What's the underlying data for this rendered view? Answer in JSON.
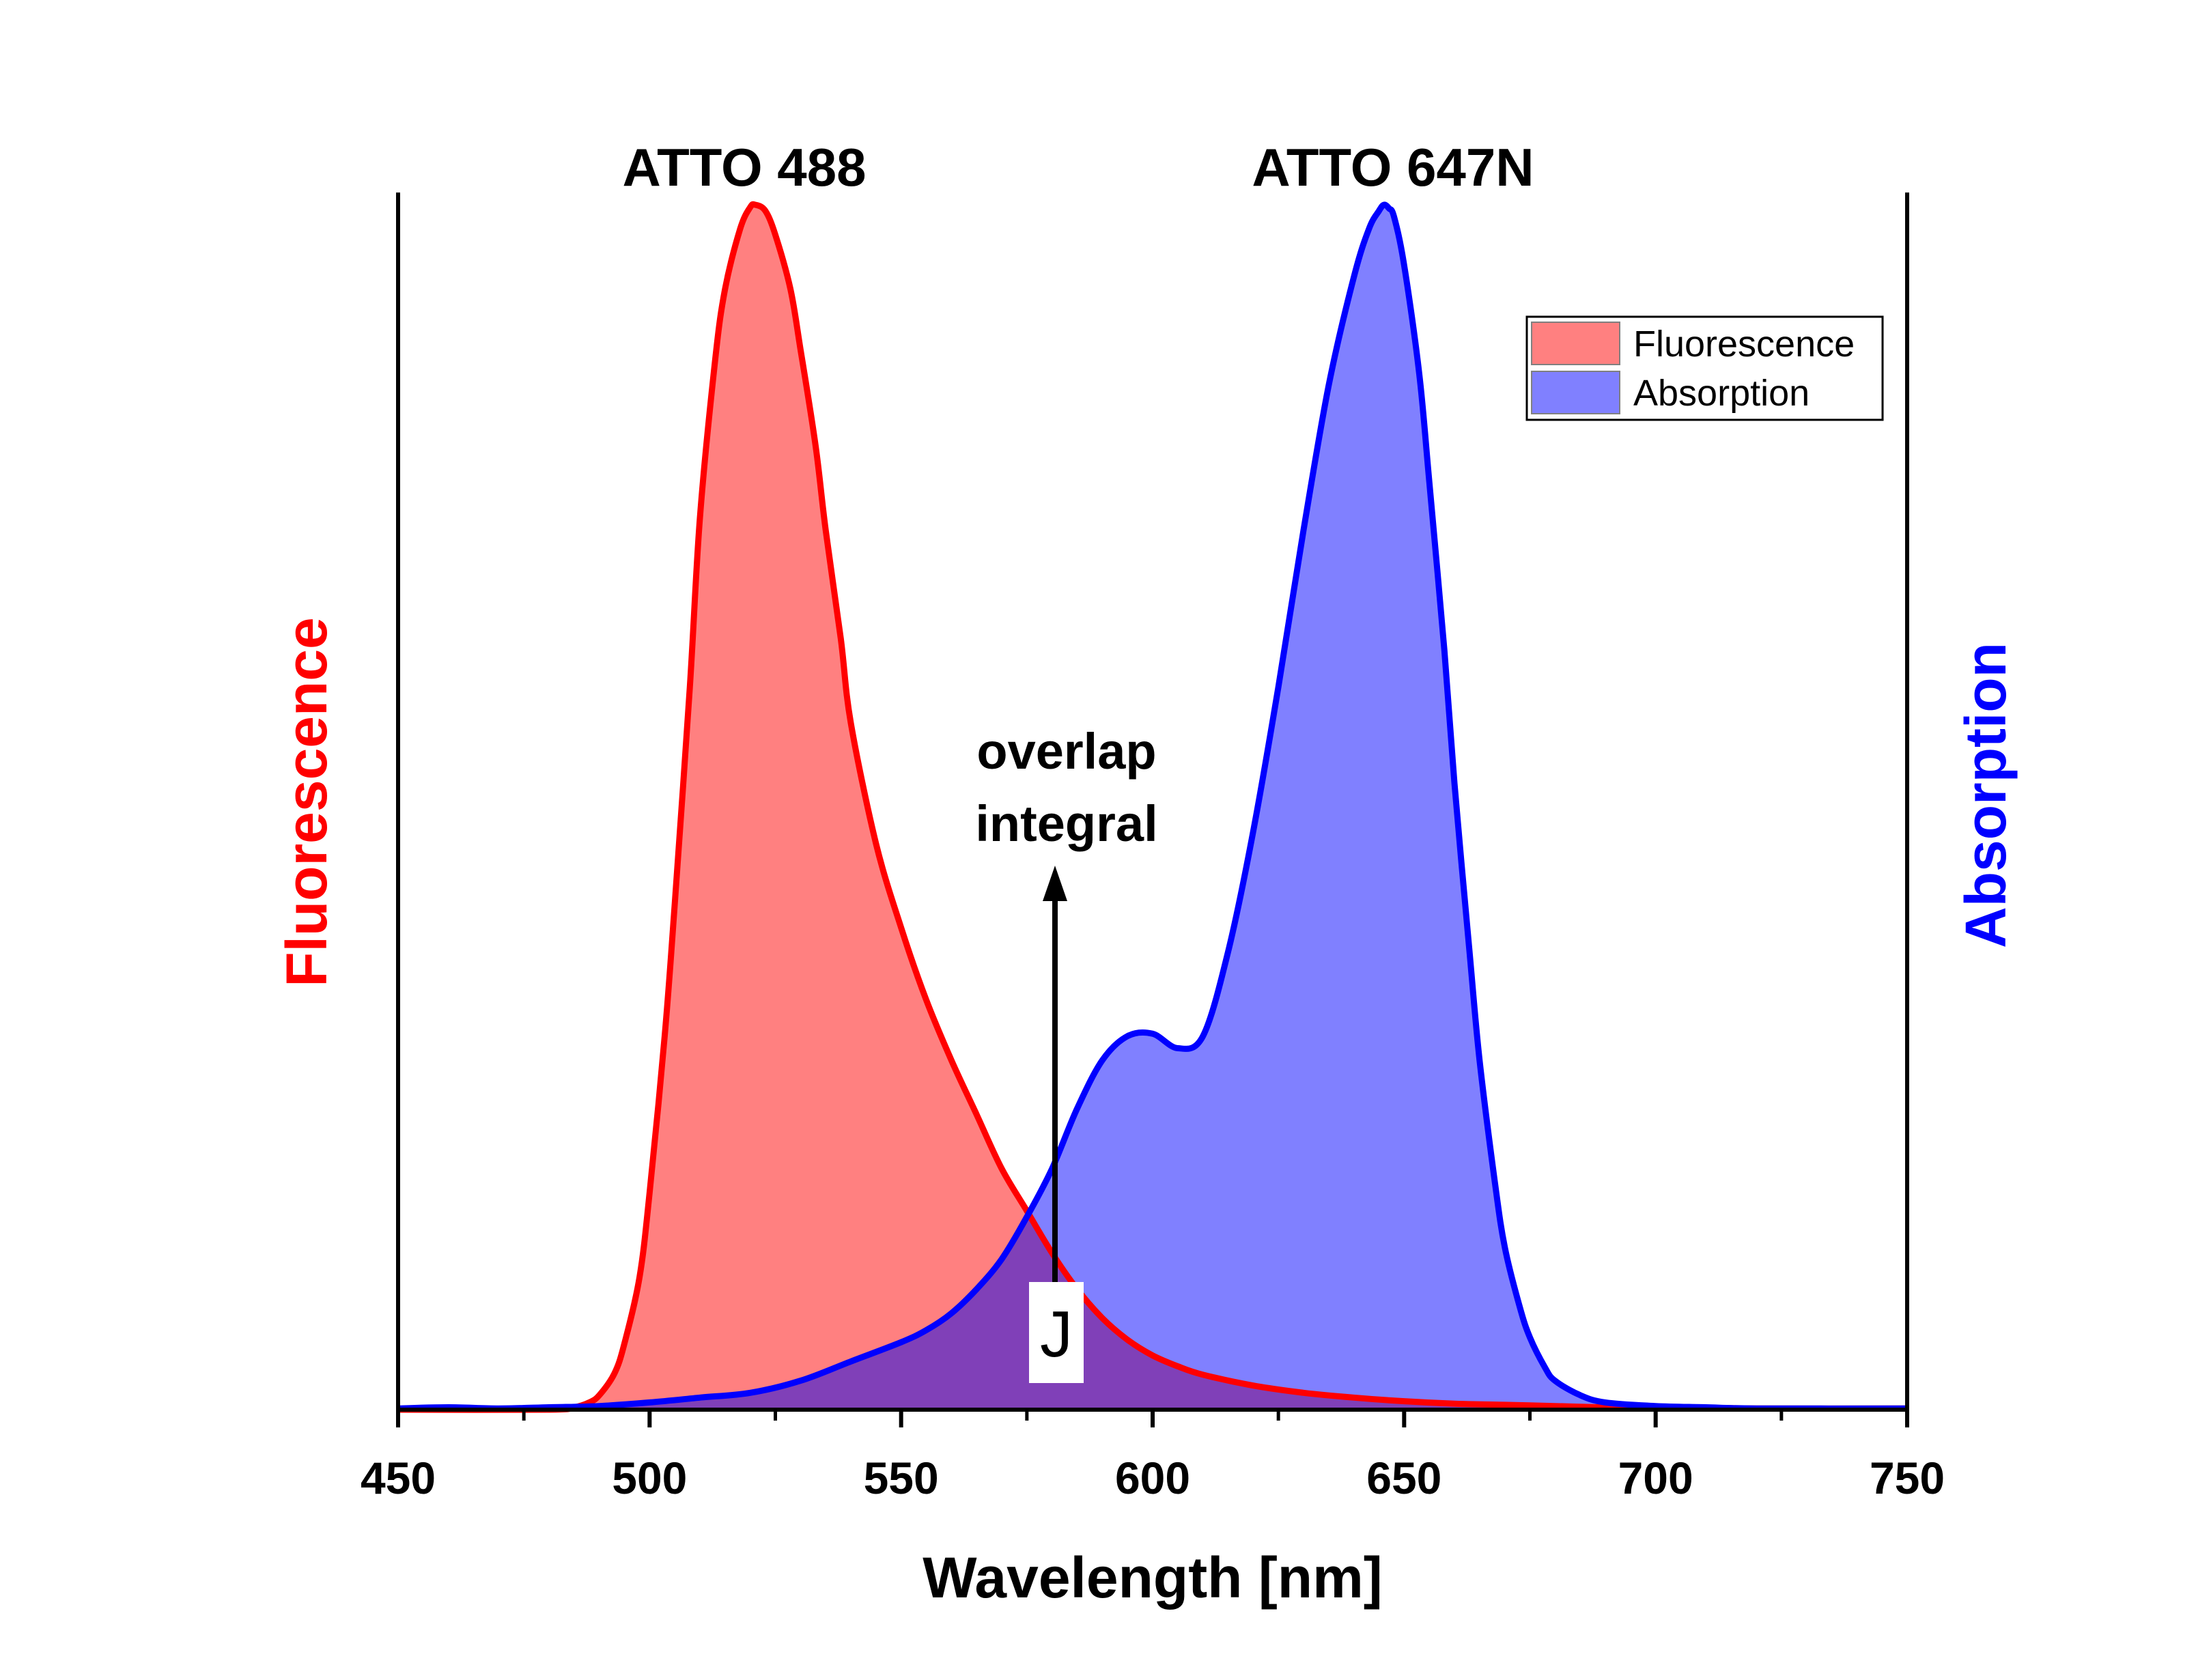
{
  "chart_data": {
    "type": "area",
    "xlabel": "Wavelength [nm]",
    "ylabel_left": "Fluorescence",
    "ylabel_right": "Absorption",
    "xlim": [
      450,
      750
    ],
    "ylim": [
      0,
      1
    ],
    "x_ticks": [
      "450",
      "500",
      "550",
      "600",
      "650",
      "700",
      "750"
    ],
    "x_tick_values": [
      450,
      500,
      550,
      600,
      650,
      700,
      750
    ],
    "x_minor_ticks": [
      475,
      525,
      575,
      625,
      675,
      725
    ],
    "grid": false,
    "legend_position": "top-right",
    "colors": {
      "fluorescence_line": "#ff0000",
      "fluorescence_fill": "#ff8080",
      "absorption_line": "#0000ff",
      "absorption_fill": "#8080ff",
      "overlap_fill": "#8040b8",
      "left_axis_label": "#ff0000",
      "right_axis_label": "#0000ff"
    },
    "series": [
      {
        "name": "Fluorescence",
        "x": [
          450,
          480,
          485,
          488,
          490,
          493,
          495,
          498,
          500,
          503,
          505,
          508,
          510,
          513,
          515,
          518,
          520,
          521,
          523,
          525,
          528,
          530,
          533,
          535,
          538,
          540,
          545,
          550,
          555,
          560,
          565,
          570,
          575,
          580,
          585,
          590,
          595,
          600,
          605,
          610,
          620,
          630,
          640,
          650,
          660,
          670,
          680,
          690,
          700,
          720,
          750
        ],
        "values": [
          0,
          0,
          0.002,
          0.006,
          0.012,
          0.03,
          0.055,
          0.11,
          0.18,
          0.31,
          0.42,
          0.6,
          0.74,
          0.87,
          0.93,
          0.98,
          0.998,
          1.0,
          0.995,
          0.975,
          0.93,
          0.88,
          0.8,
          0.73,
          0.64,
          0.57,
          0.47,
          0.4,
          0.34,
          0.29,
          0.245,
          0.2,
          0.165,
          0.13,
          0.1,
          0.076,
          0.058,
          0.045,
          0.036,
          0.029,
          0.02,
          0.014,
          0.01,
          0.007,
          0.005,
          0.004,
          0.003,
          0.002,
          0.002,
          0.001,
          0.001
        ]
      },
      {
        "name": "Absorption",
        "x": [
          450,
          460,
          470,
          480,
          490,
          500,
          510,
          520,
          530,
          540,
          550,
          555,
          560,
          565,
          570,
          575,
          580,
          585,
          590,
          595,
          600,
          605,
          610,
          615,
          620,
          625,
          630,
          635,
          640,
          643,
          645,
          646,
          647,
          648,
          650,
          653,
          655,
          658,
          660,
          663,
          665,
          668,
          670,
          673,
          675,
          678,
          680,
          685,
          690,
          700,
          710,
          720,
          750
        ],
        "values": [
          0.001,
          0.002,
          0.001,
          0.002,
          0.003,
          0.006,
          0.01,
          0.014,
          0.024,
          0.04,
          0.056,
          0.066,
          0.08,
          0.1,
          0.125,
          0.16,
          0.2,
          0.25,
          0.29,
          0.31,
          0.312,
          0.3,
          0.31,
          0.38,
          0.48,
          0.6,
          0.73,
          0.85,
          0.94,
          0.98,
          0.995,
          1.0,
          0.997,
          0.99,
          0.95,
          0.86,
          0.77,
          0.63,
          0.52,
          0.38,
          0.29,
          0.19,
          0.135,
          0.085,
          0.06,
          0.035,
          0.024,
          0.012,
          0.006,
          0.003,
          0.002,
          0.001,
          0.001
        ]
      }
    ],
    "annotations": [
      {
        "text": "ATTO 488",
        "x": 521
      },
      {
        "text": "ATTO 647N",
        "x": 646
      },
      {
        "text": "overlap",
        "x": 585
      },
      {
        "text": "integral",
        "x": 585
      },
      {
        "text": "J",
        "x": 580
      }
    ],
    "legend": [
      "Fluorescence",
      "Absorption"
    ]
  }
}
